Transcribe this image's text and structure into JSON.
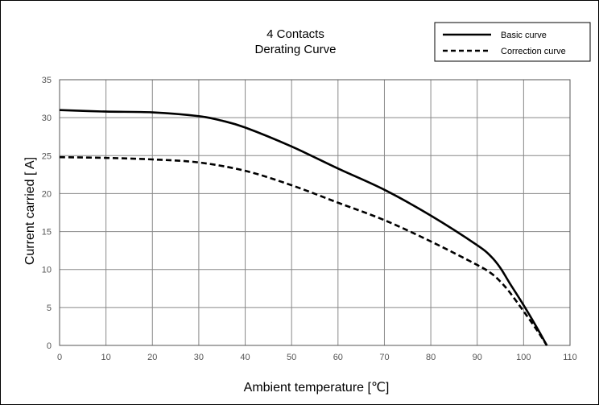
{
  "chart_data": {
    "type": "line",
    "title_lines": [
      "4 Contacts",
      "Derating Curve"
    ],
    "xlabel": "Ambient temperature [℃]",
    "ylabel": "Current carried [ A]",
    "xlim": [
      0,
      110
    ],
    "ylim": [
      0,
      35
    ],
    "xticks": [
      0,
      10,
      20,
      30,
      40,
      50,
      60,
      70,
      80,
      90,
      100,
      110
    ],
    "yticks": [
      0,
      5,
      10,
      15,
      20,
      25,
      30,
      35
    ],
    "grid": true,
    "legend_position": "top-right",
    "series": [
      {
        "name": "Basic curve",
        "style": "solid",
        "color": "#000000",
        "x": [
          0,
          10,
          20,
          30,
          35,
          40,
          50,
          60,
          70,
          80,
          90,
          93,
          95,
          97,
          100,
          103,
          105
        ],
        "y": [
          31,
          30.8,
          30.7,
          30.2,
          29.6,
          28.7,
          26.2,
          23.3,
          20.5,
          17.1,
          13.2,
          11.7,
          10.2,
          8.2,
          5.3,
          2.2,
          0
        ]
      },
      {
        "name": "Correction curve",
        "style": "dashed",
        "color": "#000000",
        "x": [
          0,
          10,
          20,
          30,
          40,
          50,
          60,
          70,
          80,
          90,
          93,
          95,
          97,
          100,
          103,
          105
        ],
        "y": [
          24.8,
          24.7,
          24.5,
          24.1,
          23,
          21.1,
          18.8,
          16.5,
          13.7,
          10.6,
          9.5,
          8.4,
          7,
          4.5,
          1.9,
          0
        ]
      }
    ]
  }
}
